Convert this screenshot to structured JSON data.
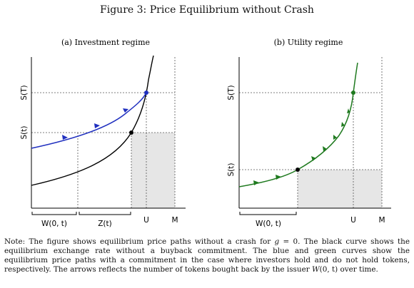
{
  "figure": {
    "title": "Figure 3: Price Equilibrium without Crash",
    "panels": [
      {
        "subtitle": "(a) Investment regime",
        "y_labels": [
          "S(T)",
          "S(t)"
        ],
        "x_labels": [
          "U",
          "M"
        ],
        "brace_labels": [
          "W(0, t)",
          "Z(t)"
        ],
        "path_color": "#1f2fbf"
      },
      {
        "subtitle": "(b) Utility regime",
        "y_labels": [
          "S(T)",
          "S(t)"
        ],
        "x_labels": [
          "U",
          "M"
        ],
        "brace_labels": [
          "W(0, t)"
        ],
        "path_color": "#1f7a1f"
      }
    ]
  },
  "note": {
    "part1": "Note:  The figure shows equilibrium price paths without a crash for ",
    "g_symbol": "g",
    "part2": " = 0.  The black curve shows the equilibrium exchange rate without a buyback commitment. The blue and green curves show the equilibrium price paths with a commitment in the case where investors hold and do not hold tokens, respectively.  The arrows reflects the number of tokens bought back by the issuer ",
    "w_symbol": "W",
    "part3": "(0, t) over time."
  }
}
